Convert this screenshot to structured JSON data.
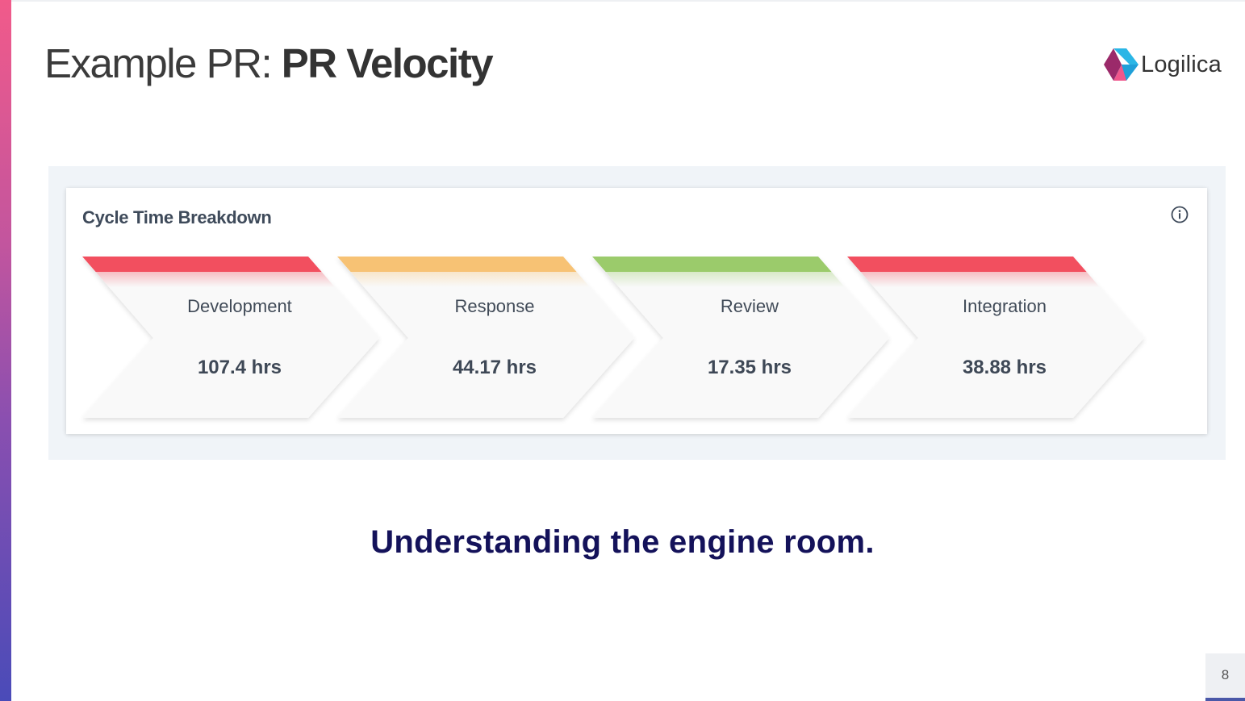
{
  "slide": {
    "title_prefix": "Example PR: ",
    "title_bold": "PR Velocity",
    "tagline": "Understanding the engine room.",
    "page_number": "8"
  },
  "logo": {
    "text": "Logilica",
    "icon": "logilica-logo-icon"
  },
  "widget": {
    "title": "Cycle Time Breakdown",
    "info_icon": "info-circle-icon",
    "stages": [
      {
        "label": "Development",
        "value": "107.4 hrs",
        "color": "#f24f5f"
      },
      {
        "label": "Response",
        "value": "44.17 hrs",
        "color": "#f7c274"
      },
      {
        "label": "Review",
        "value": "17.35 hrs",
        "color": "#9bcb6b"
      },
      {
        "label": "Integration",
        "value": "38.88 hrs",
        "color": "#f24f5f"
      }
    ]
  },
  "colors": {
    "accent_stripe_top": "#f15a8a",
    "accent_stripe_bottom": "#4a4bb8",
    "tagline": "#14125a"
  }
}
